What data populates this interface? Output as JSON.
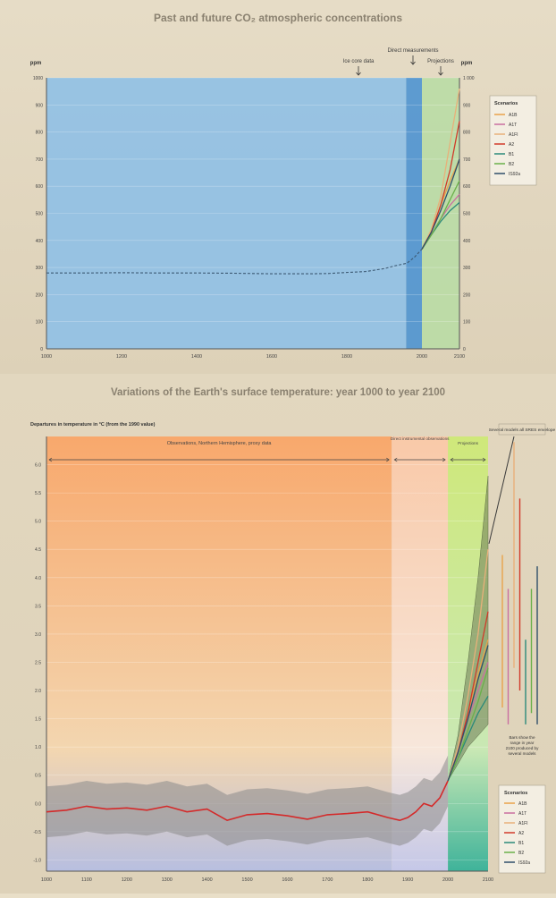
{
  "chart_data": [
    {
      "type": "line",
      "title": "Past and future CO₂ atmospheric concentrations",
      "ylabel_left": "ppm",
      "ylabel_right": "ppm",
      "xlim": [
        1000,
        2100
      ],
      "ylim": [
        0,
        1000
      ],
      "x_ticks": [
        1000,
        1200,
        1400,
        1600,
        1800,
        2000,
        2100
      ],
      "x_tick_labels": [
        "1000",
        "1200",
        "1400",
        "1600",
        "1800",
        "2000",
        "2100"
      ],
      "y_ticks": [
        0,
        100,
        200,
        300,
        400,
        500,
        600,
        700,
        800,
        900,
        1000
      ],
      "y_tick_labels": [
        "0",
        "100",
        "200",
        "300",
        "400",
        "500",
        "600",
        "700",
        "800",
        "900",
        "1000"
      ],
      "y_tick_labels_right": [
        "0",
        "100",
        "200",
        "300",
        "400",
        "500",
        "600",
        "700",
        "800",
        "900",
        "1 000"
      ],
      "regions": [
        {
          "label": "Ice core data",
          "x0": 1000,
          "x1": 1958,
          "color": "#80b7e2"
        },
        {
          "label": "Direct measurements",
          "x0": 1958,
          "x1": 2000,
          "color": "#4e93d2"
        },
        {
          "label": "Projections",
          "x0": 2000,
          "x1": 2100,
          "color": "#b9dca5"
        }
      ],
      "historical": {
        "x": [
          1000,
          1100,
          1200,
          1300,
          1400,
          1500,
          1600,
          1700,
          1750,
          1800,
          1850,
          1900,
          1930,
          1960,
          1980,
          2000
        ],
        "y": [
          280,
          280,
          281,
          280,
          280,
          279,
          277,
          277,
          278,
          282,
          285,
          296,
          307,
          316,
          338,
          368
        ]
      },
      "legend_title": "Scenarios",
      "legend_position": "right",
      "series": [
        {
          "name": "A1B",
          "color": "#e9a24b",
          "x": [
            2000,
            2025,
            2050,
            2075,
            2100
          ],
          "y": [
            368,
            430,
            530,
            620,
            700
          ]
        },
        {
          "name": "A1T",
          "color": "#c96fa0",
          "x": [
            2000,
            2025,
            2050,
            2075,
            2100
          ],
          "y": [
            368,
            420,
            480,
            530,
            570
          ]
        },
        {
          "name": "A1FI",
          "color": "#e8b07a",
          "x": [
            2000,
            2025,
            2050,
            2075,
            2100
          ],
          "y": [
            368,
            440,
            560,
            760,
            960
          ]
        },
        {
          "name": "A2",
          "color": "#d13a2a",
          "x": [
            2000,
            2025,
            2050,
            2075,
            2100
          ],
          "y": [
            368,
            430,
            530,
            660,
            840
          ]
        },
        {
          "name": "B1",
          "color": "#2b8a7a",
          "x": [
            2000,
            2025,
            2050,
            2075,
            2100
          ],
          "y": [
            368,
            420,
            470,
            510,
            540
          ]
        },
        {
          "name": "B2",
          "color": "#6ab04a",
          "x": [
            2000,
            2025,
            2050,
            2075,
            2100
          ],
          "y": [
            368,
            420,
            480,
            550,
            620
          ]
        },
        {
          "name": "IS92a",
          "color": "#2f4f6a",
          "x": [
            2000,
            2025,
            2050,
            2075,
            2100
          ],
          "y": [
            368,
            430,
            510,
            600,
            700
          ]
        }
      ]
    },
    {
      "type": "line",
      "title": "Variations of the Earth's surface temperature: year 1000 to year 2100",
      "ylabel": "Departures in temperature in °C (from the 1990 value)",
      "xlim": [
        1000,
        2100
      ],
      "ylim": [
        -1.2,
        6.5
      ],
      "x_ticks": [
        1000,
        1100,
        1200,
        1300,
        1400,
        1500,
        1600,
        1700,
        1800,
        1900,
        2000,
        2100
      ],
      "x_tick_labels": [
        "1000",
        "1100",
        "1200",
        "1300",
        "1400",
        "1500",
        "1600",
        "1700",
        "1800",
        "1900",
        "2000",
        "2100"
      ],
      "y_ticks": [
        -1.0,
        -0.5,
        0.0,
        0.5,
        1.0,
        1.5,
        2.0,
        2.5,
        3.0,
        3.5,
        4.0,
        4.5,
        5.0,
        5.5,
        6.0
      ],
      "y_tick_labels": [
        "-1.0",
        "-0.5",
        "0.0",
        "0.5",
        "1.0",
        "1.5",
        "2.0",
        "2.5",
        "3.0",
        "3.5",
        "4.0",
        "4.5",
        "5.0",
        "5.5",
        "6.0"
      ],
      "regions": [
        {
          "label": "Observations, Northern Hemisphere, proxy data",
          "x0": 1000,
          "x1": 1860,
          "color": "#f6b57a"
        },
        {
          "label": "Direct instrumental observations",
          "x0": 1860,
          "x1": 2000,
          "color": "#f6d9c4"
        },
        {
          "label": "Projections",
          "x0": 2000,
          "x1": 2100,
          "color": "#bfe0a8"
        }
      ],
      "history": {
        "x": [
          1000,
          1050,
          1100,
          1150,
          1200,
          1250,
          1300,
          1350,
          1400,
          1450,
          1500,
          1550,
          1600,
          1650,
          1700,
          1750,
          1800,
          1850,
          1880,
          1900,
          1920,
          1940,
          1960,
          1980,
          2000
        ],
        "y": [
          -0.15,
          -0.12,
          -0.05,
          -0.1,
          -0.08,
          -0.12,
          -0.05,
          -0.15,
          -0.1,
          -0.3,
          -0.2,
          -0.18,
          -0.22,
          -0.28,
          -0.2,
          -0.18,
          -0.15,
          -0.25,
          -0.3,
          -0.25,
          -0.15,
          0.0,
          -0.05,
          0.1,
          0.4
        ]
      },
      "history_band": {
        "upper_offset": 0.45,
        "lower_offset": 0.45
      },
      "projection_band": {
        "x": [
          2000,
          2025,
          2050,
          2075,
          2100
        ],
        "upper": [
          0.4,
          1.2,
          2.5,
          4.0,
          5.8
        ],
        "lower": [
          0.4,
          0.7,
          1.0,
          1.2,
          1.4
        ]
      },
      "annotation_top": "Several models all SRES envelope",
      "annotation_bottom": "Bars show the range in year 2100 produced by several models",
      "legend_title": "Scenarios",
      "legend_position": "bottom-right",
      "series": [
        {
          "name": "A1B",
          "color": "#e9a24b",
          "x": [
            2000,
            2025,
            2050,
            2075,
            2100
          ],
          "y": [
            0.4,
            0.9,
            1.6,
            2.3,
            2.9
          ]
        },
        {
          "name": "A1T",
          "color": "#c96fa0",
          "x": [
            2000,
            2025,
            2050,
            2075,
            2100
          ],
          "y": [
            0.4,
            0.9,
            1.5,
            2.0,
            2.5
          ]
        },
        {
          "name": "A1FI",
          "color": "#e8b07a",
          "x": [
            2000,
            2025,
            2050,
            2075,
            2100
          ],
          "y": [
            0.4,
            1.0,
            1.9,
            3.0,
            4.5
          ]
        },
        {
          "name": "A2",
          "color": "#d13a2a",
          "x": [
            2000,
            2025,
            2050,
            2075,
            2100
          ],
          "y": [
            0.4,
            0.9,
            1.6,
            2.5,
            3.4
          ]
        },
        {
          "name": "B1",
          "color": "#2b8a7a",
          "x": [
            2000,
            2025,
            2050,
            2075,
            2100
          ],
          "y": [
            0.4,
            0.8,
            1.2,
            1.6,
            1.9
          ]
        },
        {
          "name": "B2",
          "color": "#6ab04a",
          "x": [
            2000,
            2025,
            2050,
            2075,
            2100
          ],
          "y": [
            0.4,
            0.8,
            1.3,
            1.8,
            2.4
          ]
        },
        {
          "name": "IS92a",
          "color": "#2f4f6a",
          "x": [
            2000,
            2025,
            2050,
            2075,
            2100
          ],
          "y": [
            0.4,
            0.9,
            1.5,
            2.2,
            2.8
          ]
        }
      ],
      "range_bars": [
        {
          "name": "A1B",
          "color": "#e9a24b",
          "low": 1.7,
          "high": 4.4
        },
        {
          "name": "A1T",
          "color": "#c96fa0",
          "low": 1.4,
          "high": 3.8
        },
        {
          "name": "A1FI",
          "color": "#e8b07a",
          "low": 2.4,
          "high": 6.4
        },
        {
          "name": "A2",
          "color": "#d13a2a",
          "low": 2.0,
          "high": 5.4
        },
        {
          "name": "B1",
          "color": "#2b8a7a",
          "low": 1.4,
          "high": 2.9
        },
        {
          "name": "B2",
          "color": "#6ab04a",
          "low": 1.6,
          "high": 3.8
        },
        {
          "name": "IS92a",
          "color": "#2f4f6a",
          "low": 1.4,
          "high": 4.2
        }
      ]
    }
  ]
}
